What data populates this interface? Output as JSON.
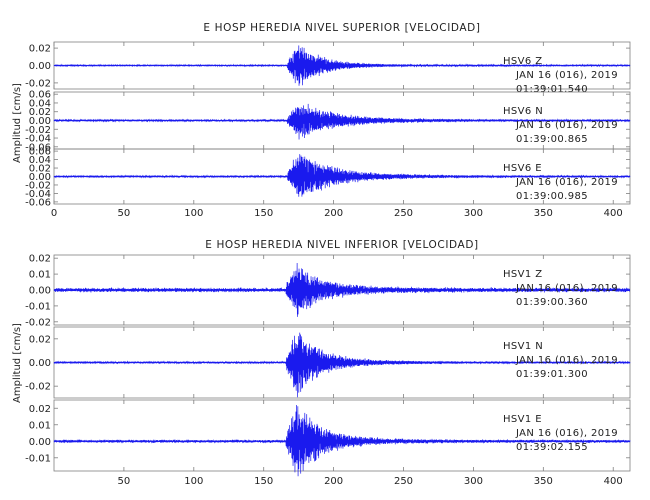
{
  "chart_data": [
    {
      "type": "line",
      "title": "E HOSP HEREDIA NIVEL SUPERIOR [VELOCIDAD]",
      "ylabel": "Amplitud [cm/s]",
      "x_ticks": [
        0,
        50,
        100,
        150,
        200,
        250,
        300,
        350,
        400
      ],
      "xlim": [
        0,
        412
      ],
      "show_x_tick_labels": true,
      "traces": [
        {
          "station": "HSV6",
          "component": "Z",
          "date_line": "JAN 16 (016), 2019",
          "time_line": "01:39:01.540",
          "ylim": [
            -0.027,
            0.027
          ],
          "y_ticks": [
            "0.02",
            "0.00",
            "-0.02"
          ],
          "arrival": 175,
          "peak_amplitude": 0.024,
          "noise_level": 0.0006,
          "decay": 14,
          "seed": 11
        },
        {
          "station": "HSV6",
          "component": "N",
          "date_line": "JAN 16 (016), 2019",
          "time_line": "01:39:00.865",
          "ylim": [
            -0.065,
            0.065
          ],
          "y_ticks": [
            "0.06",
            "0.04",
            "0.02",
            "0.00",
            "-0.02",
            "-0.04",
            "-0.06"
          ],
          "arrival": 175,
          "peak_amplitude": 0.04,
          "noise_level": 0.002,
          "decay": 22,
          "seed": 23
        },
        {
          "station": "HSV6",
          "component": "E",
          "date_line": "JAN 16 (016), 2019",
          "time_line": "01:39:00.985",
          "ylim": [
            -0.065,
            0.065
          ],
          "y_ticks": [
            "0.06",
            "0.04",
            "0.02",
            "0.00",
            "-0.02",
            "-0.04",
            "-0.06"
          ],
          "arrival": 175,
          "peak_amplitude": 0.055,
          "noise_level": 0.002,
          "decay": 20,
          "seed": 37
        }
      ]
    },
    {
      "type": "line",
      "title": "E HOSP HEREDIA NIVEL INFERIOR [VELOCIDAD]",
      "ylabel": "Amplitud [cm/s]",
      "x_ticks": [
        50,
        100,
        150,
        200,
        250,
        300,
        350,
        400
      ],
      "xlim": [
        0,
        412
      ],
      "show_x_tick_labels": true,
      "traces": [
        {
          "station": "HSV1",
          "component": "Z",
          "date_line": "JAN 16 (016), 2019",
          "time_line": "01:39:00.360",
          "ylim": [
            -0.022,
            0.022
          ],
          "y_ticks": [
            "0.02",
            "0.01",
            "0.00",
            "-0.01",
            "-0.02"
          ],
          "arrival": 174,
          "peak_amplitude": 0.015,
          "noise_level": 0.0012,
          "decay": 16,
          "seed": 41
        },
        {
          "station": "HSV1",
          "component": "N",
          "date_line": "JAN 16 (016), 2019",
          "time_line": "01:39:01.300",
          "ylim": [
            -0.03,
            0.03
          ],
          "y_ticks": [
            "0.02",
            "0.00",
            "-0.02"
          ],
          "arrival": 174,
          "peak_amplitude": 0.026,
          "noise_level": 0.0007,
          "decay": 15,
          "seed": 53
        },
        {
          "station": "HSV1",
          "component": "E",
          "date_line": "JAN 16 (016), 2019",
          "time_line": "01:39:02.155",
          "ylim": [
            -0.018,
            0.025
          ],
          "y_ticks": [
            "0.02",
            "0.01",
            "0.00",
            "-0.01"
          ],
          "arrival": 174,
          "peak_amplitude": 0.021,
          "noise_level": 0.0008,
          "decay": 15,
          "seed": 67
        }
      ]
    }
  ],
  "colors": {
    "trace": "#1a1aee",
    "frame": "#7f7f7f",
    "text": "#222222"
  }
}
